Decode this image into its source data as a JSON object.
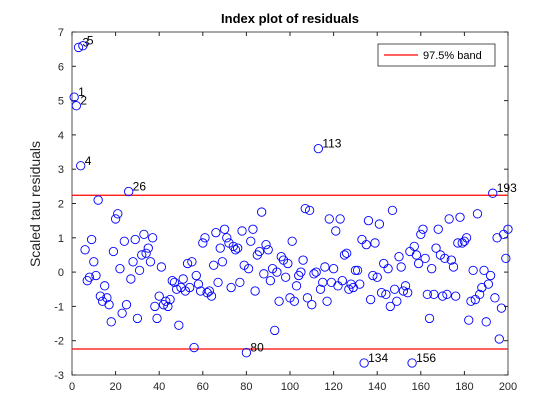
{
  "chart_data": {
    "type": "scatter",
    "title": "Index plot of residuals",
    "y_label": "Scaled tau residuals",
    "xlim": [
      0,
      200
    ],
    "xticks": [
      0,
      20,
      40,
      60,
      80,
      100,
      120,
      140,
      160,
      180,
      200
    ],
    "ylim": [
      -3,
      7
    ],
    "yticks": [
      -3,
      -2,
      -1,
      0,
      1,
      2,
      3,
      4,
      5,
      6,
      7
    ],
    "legend_position": "northeast",
    "series": [
      {
        "name": "residuals",
        "color": "#0000ff",
        "x": [
          1,
          2,
          3,
          4,
          5,
          6,
          7,
          8,
          9,
          10,
          11,
          12,
          13,
          14,
          15,
          16,
          17,
          18,
          19,
          20,
          21,
          22,
          23,
          24,
          25,
          26,
          27,
          28,
          29,
          30,
          31,
          32,
          33,
          34,
          35,
          36,
          37,
          38,
          39,
          40,
          41,
          42,
          43,
          44,
          45,
          46,
          47,
          48,
          49,
          50,
          51,
          52,
          53,
          54,
          55,
          56,
          57,
          58,
          59,
          60,
          61,
          62,
          63,
          64,
          65,
          66,
          67,
          68,
          69,
          70,
          71,
          72,
          73,
          74,
          75,
          76,
          77,
          78,
          79,
          80,
          81,
          82,
          83,
          84,
          85,
          86,
          87,
          88,
          89,
          90,
          91,
          92,
          93,
          94,
          95,
          96,
          97,
          98,
          99,
          100,
          101,
          102,
          103,
          104,
          105,
          106,
          107,
          108,
          109,
          110,
          111,
          112,
          113,
          114,
          115,
          116,
          117,
          118,
          119,
          120,
          121,
          122,
          123,
          124,
          125,
          126,
          127,
          128,
          129,
          130,
          131,
          132,
          133,
          134,
          135,
          136,
          137,
          138,
          139,
          140,
          141,
          142,
          143,
          144,
          145,
          146,
          147,
          148,
          149,
          150,
          151,
          152,
          153,
          154,
          155,
          156,
          157,
          158,
          159,
          160,
          161,
          162,
          163,
          164,
          165,
          166,
          167,
          168,
          169,
          170,
          171,
          172,
          173,
          174,
          175,
          176,
          177,
          178,
          179,
          180,
          181,
          182,
          183,
          184,
          185,
          186,
          187,
          188,
          189,
          190,
          191,
          192,
          193,
          194,
          195,
          196,
          197,
          198,
          199,
          200
        ],
        "values": [
          5.1,
          4.85,
          6.55,
          3.1,
          6.6,
          0.65,
          -0.25,
          -0.15,
          0.95,
          0.3,
          -0.1,
          2.1,
          -0.7,
          -0.85,
          -0.4,
          -0.75,
          -0.95,
          -1.45,
          0.6,
          1.55,
          1.7,
          0.1,
          -1.2,
          0.9,
          -0.95,
          2.35,
          -0.2,
          0.3,
          0.95,
          -1.35,
          0.05,
          0.5,
          1.1,
          0.55,
          0.7,
          0.3,
          1.0,
          -1.0,
          -1.35,
          -0.7,
          0.15,
          -0.95,
          -0.85,
          -1.0,
          -0.8,
          -0.25,
          -0.3,
          -0.5,
          -1.55,
          -0.45,
          -0.2,
          -0.55,
          0.25,
          -0.45,
          0.3,
          -2.2,
          -0.1,
          -0.35,
          -0.55,
          0.85,
          1.0,
          -0.6,
          -0.55,
          -0.7,
          0.2,
          1.15,
          -0.3,
          0.7,
          0.3,
          1.25,
          1.0,
          0.85,
          -0.45,
          0.75,
          0.65,
          0.7,
          -0.3,
          1.2,
          0.2,
          -2.35,
          0.1,
          0.9,
          1.25,
          -0.55,
          0.5,
          0.6,
          1.75,
          -0.05,
          0.8,
          0.65,
          -0.25,
          0.1,
          -1.7,
          0,
          -0.85,
          0.45,
          0.35,
          -0.15,
          0.25,
          -0.75,
          0.9,
          -0.85,
          -0.4,
          -0.1,
          0,
          0.35,
          1.85,
          -0.75,
          1.8,
          -0.95,
          -0.05,
          0.0,
          3.6,
          -0.5,
          -0.3,
          0.15,
          -0.85,
          1.55,
          -0.3,
          0.1,
          1.2,
          -0.4,
          1.55,
          -0.25,
          0.5,
          0.55,
          -0.5,
          -0.35,
          -0.45,
          0.05,
          0.05,
          -0.35,
          0.95,
          -2.65,
          0.8,
          1.5,
          -0.8,
          -0.1,
          0.85,
          -0.15,
          1.4,
          -0.6,
          0.25,
          -0.65,
          0.1,
          -1.0,
          1.8,
          -0.5,
          -0.85,
          0.45,
          0.15,
          -0.55,
          -0.4,
          -0.6,
          0.6,
          -2.65,
          0.75,
          0.5,
          0.25,
          1.1,
          1.25,
          0.4,
          -0.65,
          -1.35,
          0.1,
          -0.65,
          0.7,
          1.25,
          0.5,
          -0.7,
          0.4,
          -0.65,
          1.55,
          0.35,
          0.15,
          -0.7,
          0.85,
          1.6,
          0.85,
          0.9,
          1.0,
          -1.4,
          -0.85,
          0.05,
          -0.8,
          1.7,
          -0.65,
          -0.45,
          0.05,
          -1.45,
          -0.35,
          -0.1,
          2.3,
          -0.75,
          1.0,
          -1.95,
          -1.05,
          1.1,
          0.4,
          1.25
        ]
      }
    ],
    "bands": {
      "name": "97.5% band",
      "color": "#ff0000",
      "values": [
        2.2414,
        -2.2414
      ]
    },
    "annotations": [
      {
        "text": "1",
        "x": 1
      },
      {
        "text": "2",
        "x": 2
      },
      {
        "text": "3",
        "x": 3
      },
      {
        "text": "4",
        "x": 4
      },
      {
        "text": "5",
        "x": 5
      },
      {
        "text": "26",
        "x": 26
      },
      {
        "text": "80",
        "x": 80
      },
      {
        "text": "113",
        "x": 113
      },
      {
        "text": "134",
        "x": 134
      },
      {
        "text": "156",
        "x": 156
      },
      {
        "text": "193",
        "x": 193
      }
    ]
  }
}
